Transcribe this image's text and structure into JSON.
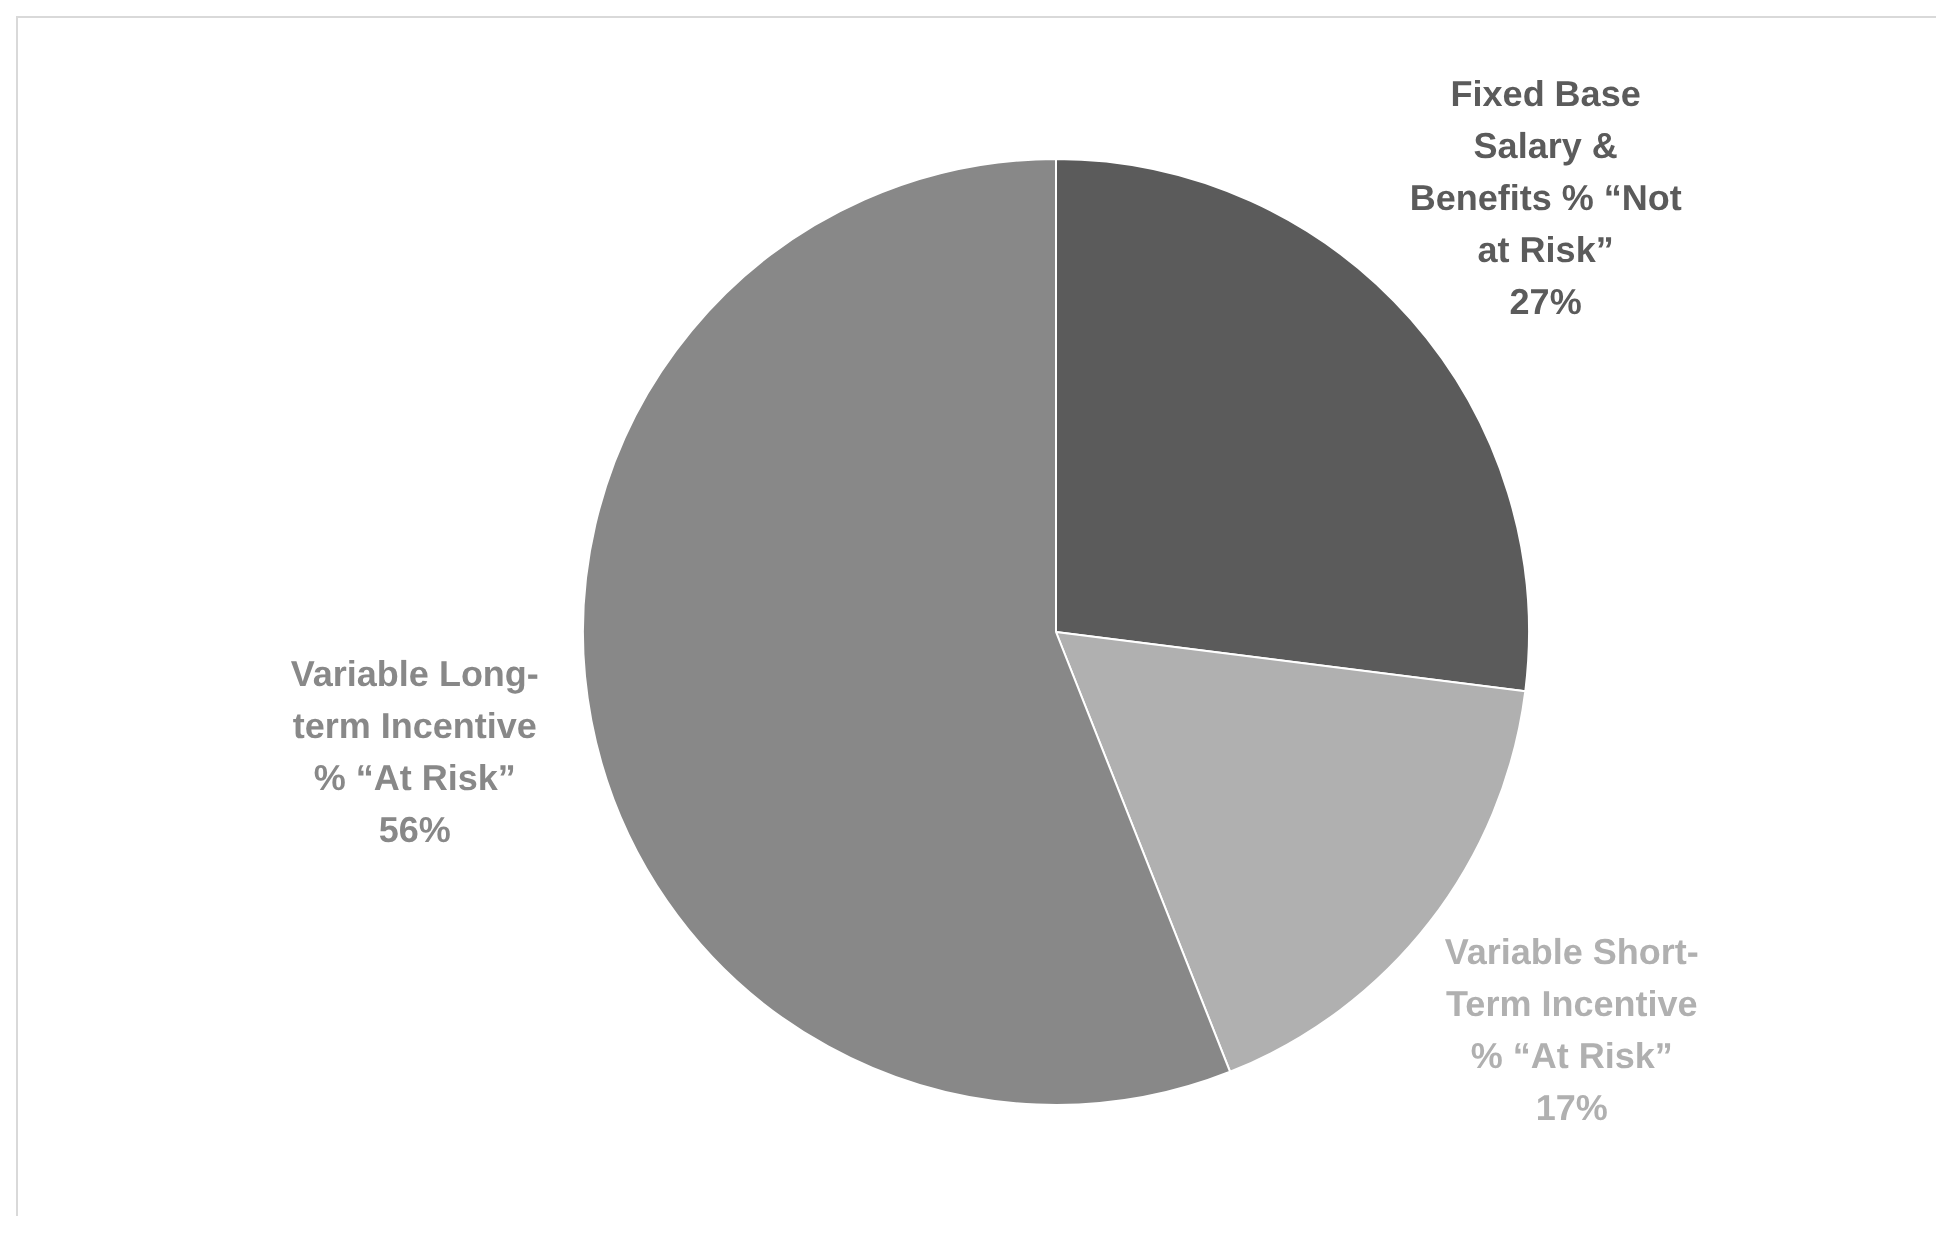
{
  "chart_data": {
    "type": "pie",
    "categories": [
      "Fixed Base Salary & Benefits % “Not at Risk”",
      "Variable Short-Term Incentive % “At Risk”",
      "Variable Long-term Incentive % “At Risk”"
    ],
    "values": [
      27,
      17,
      56
    ],
    "colors": [
      "#5b5b5b",
      "#b0b0b0",
      "#888888"
    ],
    "value_labels": [
      "27%",
      "17%",
      "56%"
    ],
    "legend": false
  }
}
